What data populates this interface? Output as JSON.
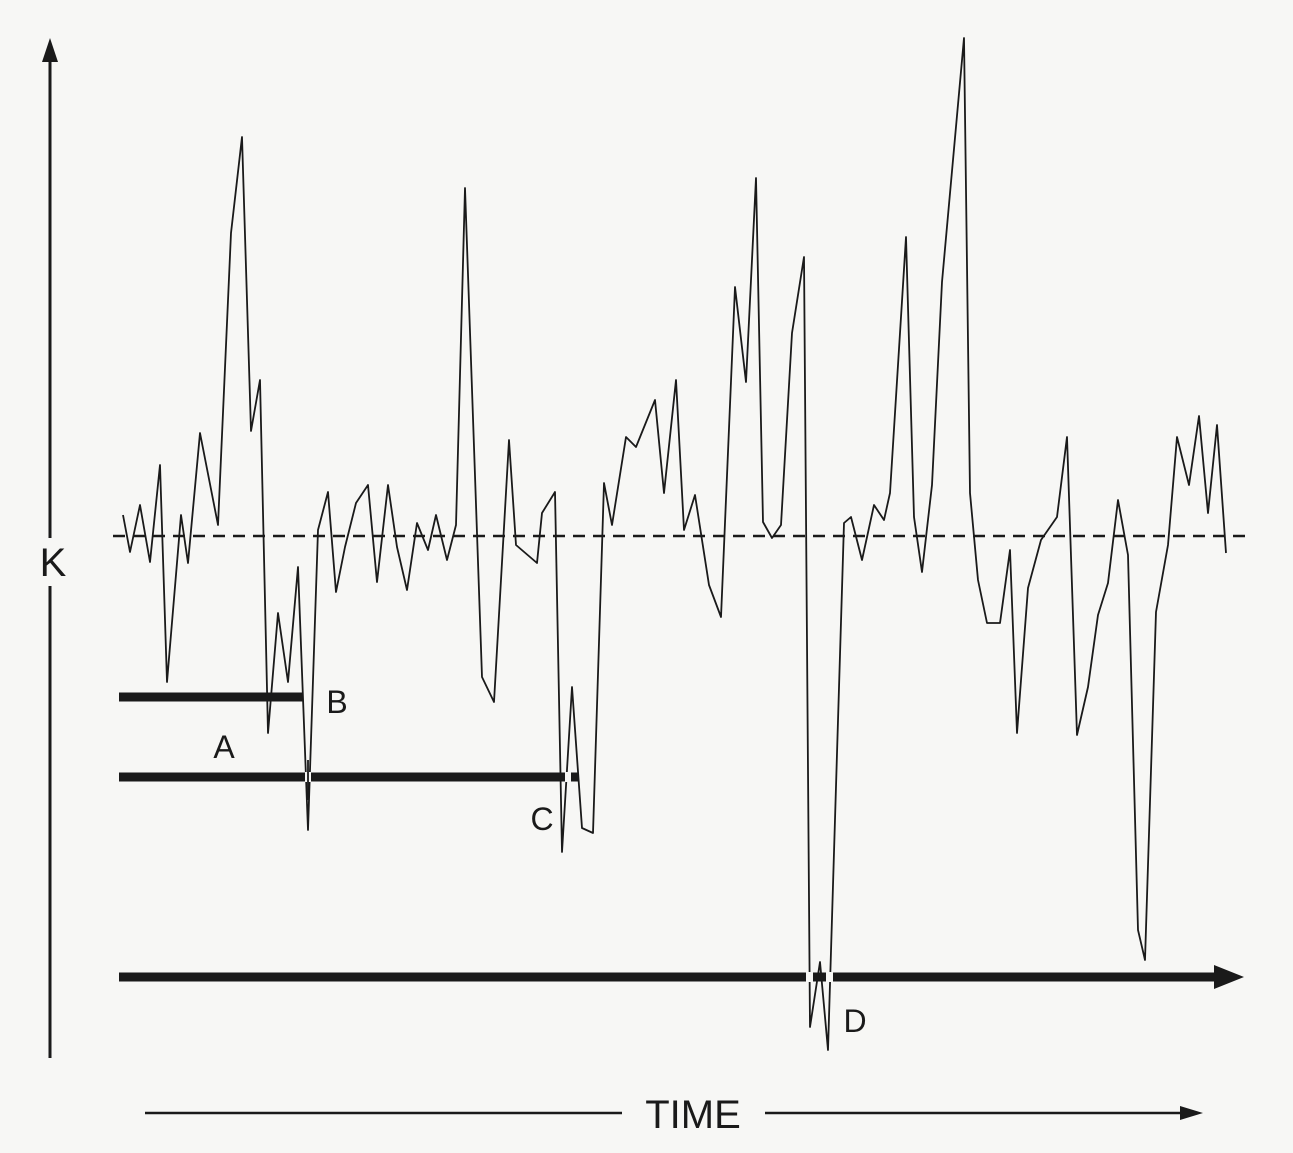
{
  "labels": {
    "y_axis": "K",
    "x_axis": "TIME",
    "a": "A",
    "b": "B",
    "c": "C",
    "d": "D"
  },
  "colors": {
    "background": "#f7f7f5",
    "ink": "#1a1a1a"
  }
}
